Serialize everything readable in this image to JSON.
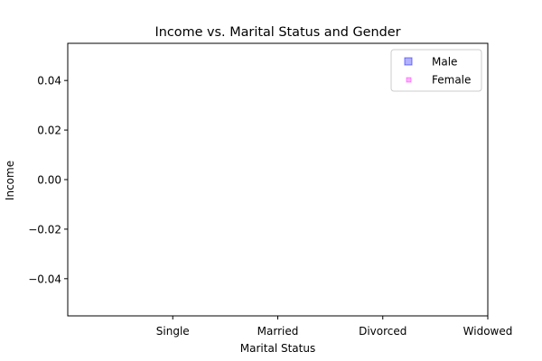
{
  "chart_data": {
    "type": "scatter",
    "title": "Income vs. Marital Status and Gender",
    "xlabel": "Marital Status",
    "ylabel": "Income",
    "categories": [
      "Single",
      "Married",
      "Divorced",
      "Widowed"
    ],
    "y_ticks": [
      "0.04",
      "0.02",
      "0.00",
      "−0.02",
      "−0.04"
    ],
    "y_tick_values": [
      0.04,
      0.02,
      0.0,
      -0.02,
      -0.04
    ],
    "ylim": [
      -0.055,
      0.055
    ],
    "grid": false,
    "legend_position": "top-right",
    "series": [
      {
        "name": "Male",
        "marker": "square",
        "color": "#0000ff",
        "values": []
      },
      {
        "name": "Female",
        "marker": "x",
        "color": "#ff00ff",
        "values": []
      }
    ]
  }
}
